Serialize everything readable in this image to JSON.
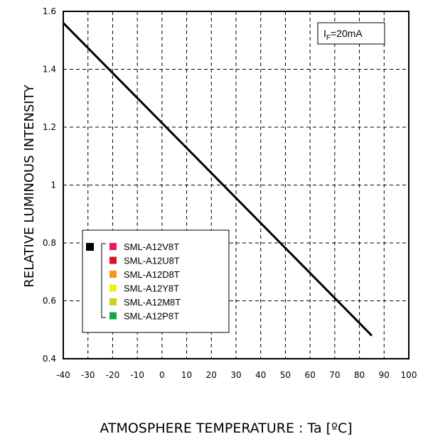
{
  "chart_data": {
    "type": "line",
    "ylabel": "RELATIVE LUMINOUS INTENSITY",
    "xlabel": "ATMOSPHERE TEMPERATURE : Ta [ºC]",
    "xlim": [
      -40,
      100
    ],
    "ylim": [
      0.4,
      1.6
    ],
    "x_ticks": [
      -40,
      -30,
      -20,
      -10,
      0,
      10,
      20,
      30,
      40,
      50,
      60,
      70,
      80,
      90,
      100
    ],
    "y_ticks": [
      0.4,
      0.6,
      0.8,
      1.0,
      1.2,
      1.4,
      1.6
    ],
    "y_tick_labels": [
      "0.4",
      "0.6",
      "0.8",
      "1",
      "1.2",
      "1.4",
      "1.6"
    ],
    "grid": true,
    "grid_style": "dashed",
    "condition": {
      "prefix": "I",
      "subscript": "F",
      "suffix": "=20mA"
    },
    "series": [
      {
        "color": "#000000",
        "x": [
          -40,
          85
        ],
        "y": [
          1.56,
          0.48
        ]
      }
    ],
    "legend": {
      "position": "lower-left",
      "marker_color": "#000000",
      "entries": [
        {
          "name": "SML-A12V8T",
          "color": "#e6186e"
        },
        {
          "name": "SML-A12U8T",
          "color": "#e0101e"
        },
        {
          "name": "SML-A12D8T",
          "color": "#f39a14"
        },
        {
          "name": "SML-A12Y8T",
          "color": "#f4ec12"
        },
        {
          "name": "SML-A12M8T",
          "color": "#c6d414"
        },
        {
          "name": "SML-A12P8T",
          "color": "#12a84a"
        }
      ]
    }
  }
}
